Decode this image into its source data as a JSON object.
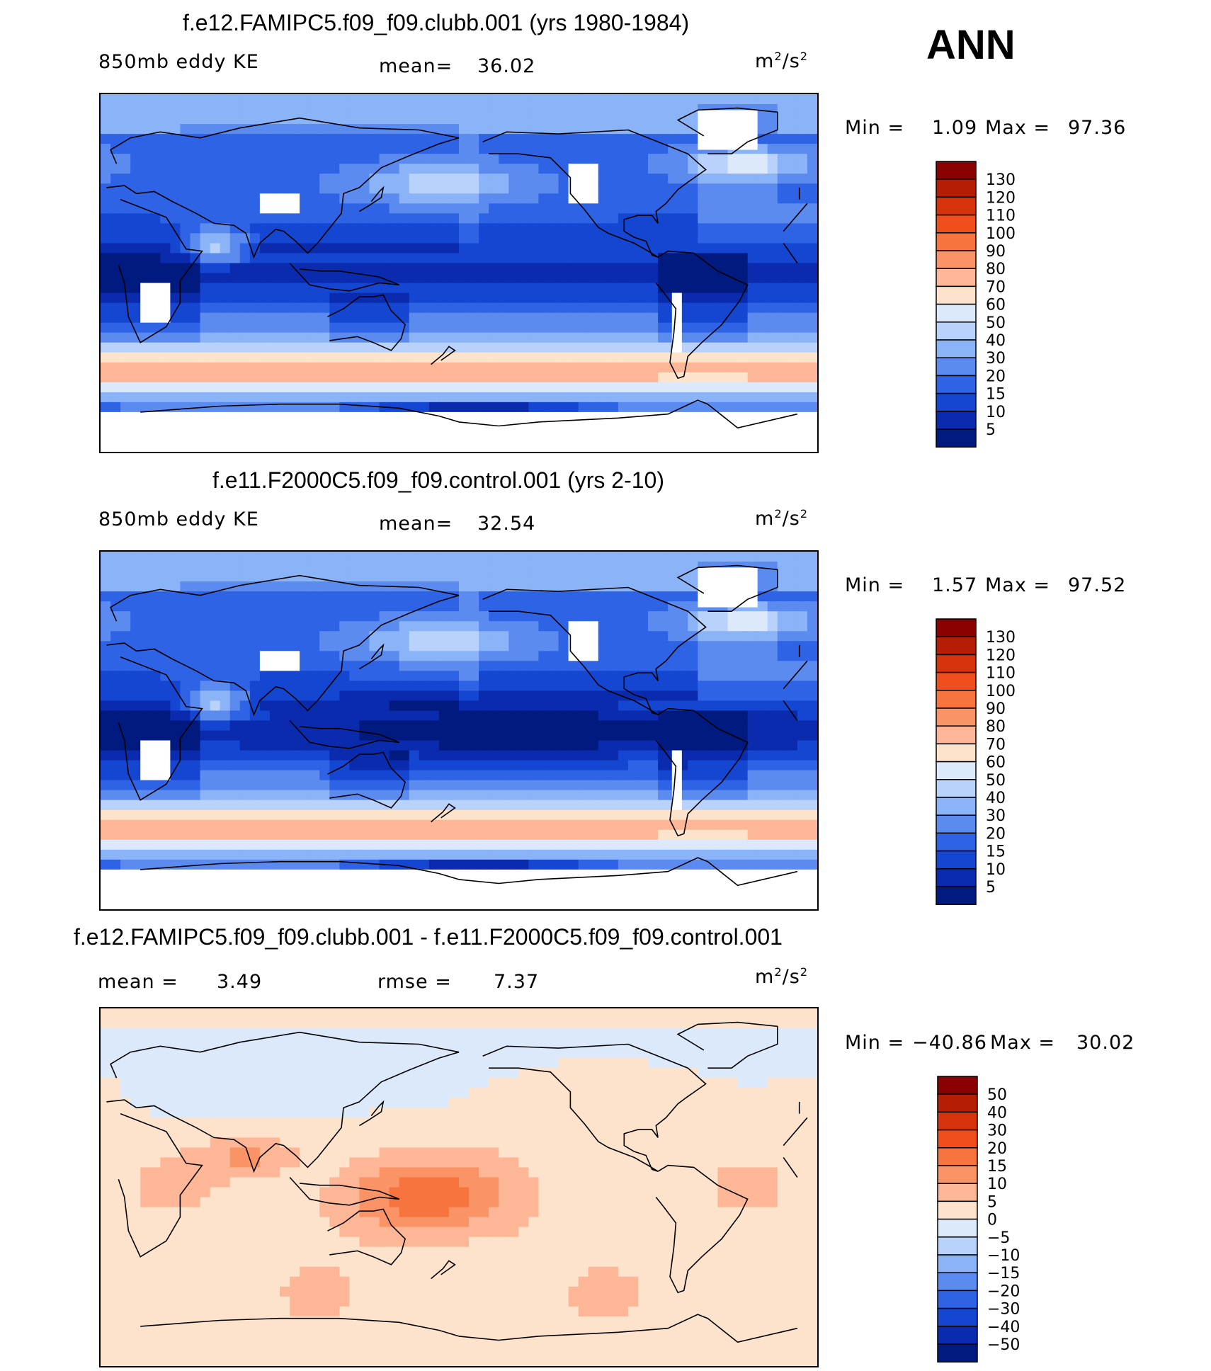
{
  "season": "ANN",
  "units_base": "m",
  "units_exp": "2",
  "units_den": "/s",
  "units_den_exp": "2",
  "panels": [
    {
      "title": "f.e12.FAMIPC5.f09_f09.clubb.001 (yrs 1980-1984)",
      "left_label": "850mb eddy KE",
      "stat_label": "mean=",
      "stat_value": "36.02",
      "min_label": "Min =",
      "min_value": "1.09",
      "max_label": "Max =",
      "max_value": "97.36"
    },
    {
      "title": "f.e11.F2000C5.f09_f09.control.001 (yrs 2-10)",
      "left_label": "850mb eddy KE",
      "stat_label": "mean=",
      "stat_value": "32.54",
      "min_label": "Min =",
      "min_value": "1.57",
      "max_label": "Max =",
      "max_value": "97.52"
    },
    {
      "title": "f.e12.FAMIPC5.f09_f09.clubb.001 - f.e11.F2000C5.f09_f09.control.001",
      "left_label": "mean =",
      "left_value": "3.49",
      "stat_label": "rmse =",
      "stat_value": "7.37",
      "min_label": "Min =",
      "min_value": "−40.86",
      "max_label": "Max =",
      "max_value": "30.02"
    }
  ],
  "chart_data": [
    {
      "type": "heatmap",
      "title": "f.e12.FAMIPC5.f09_f09.clubb.001 (yrs 1980-1984)",
      "variable": "850mb eddy KE",
      "units": "m2/s2",
      "mean": 36.02,
      "min": 1.09,
      "max": 97.36,
      "colorbar_levels": [
        130,
        120,
        110,
        100,
        90,
        80,
        70,
        60,
        50,
        40,
        30,
        20,
        15,
        10,
        5
      ],
      "colorbar_colors": [
        "#8b0000",
        "#b51e05",
        "#d6320b",
        "#f04e1d",
        "#f7743f",
        "#fa9466",
        "#fdb797",
        "#fde3cc",
        "#dbe9fb",
        "#b8d2fb",
        "#8bb3f8",
        "#5c8bf0",
        "#2f63e6",
        "#1546d1",
        "#0a2bae",
        "#001a80"
      ]
    },
    {
      "type": "heatmap",
      "title": "f.e11.F2000C5.f09_f09.control.001 (yrs 2-10)",
      "variable": "850mb eddy KE",
      "units": "m2/s2",
      "mean": 32.54,
      "min": 1.57,
      "max": 97.52,
      "colorbar_levels": [
        130,
        120,
        110,
        100,
        90,
        80,
        70,
        60,
        50,
        40,
        30,
        20,
        15,
        10,
        5
      ],
      "colorbar_colors": [
        "#8b0000",
        "#b51e05",
        "#d6320b",
        "#f04e1d",
        "#f7743f",
        "#fa9466",
        "#fdb797",
        "#fde3cc",
        "#dbe9fb",
        "#b8d2fb",
        "#8bb3f8",
        "#5c8bf0",
        "#2f63e6",
        "#1546d1",
        "#0a2bae",
        "#001a80"
      ]
    },
    {
      "type": "heatmap",
      "title": "f.e12.FAMIPC5.f09_f09.clubb.001 - f.e11.F2000C5.f09_f09.control.001",
      "units": "m2/s2",
      "mean": 3.49,
      "rmse": 7.37,
      "min": -40.86,
      "max": 30.02,
      "colorbar_levels": [
        "50",
        "40",
        "30",
        "20",
        "15",
        "10",
        "5",
        "0",
        "−5",
        "−10",
        "−15",
        "−20",
        "−30",
        "−40",
        "−50"
      ],
      "colorbar_colors": [
        "#8b0000",
        "#b51e05",
        "#d6320b",
        "#f04e1d",
        "#f7743f",
        "#fa9466",
        "#fdb797",
        "#fde3cc",
        "#dbe9fb",
        "#b8d2fb",
        "#8bb3f8",
        "#5c8bf0",
        "#2f63e6",
        "#1546d1",
        "#0a2bae",
        "#001a80"
      ]
    }
  ]
}
